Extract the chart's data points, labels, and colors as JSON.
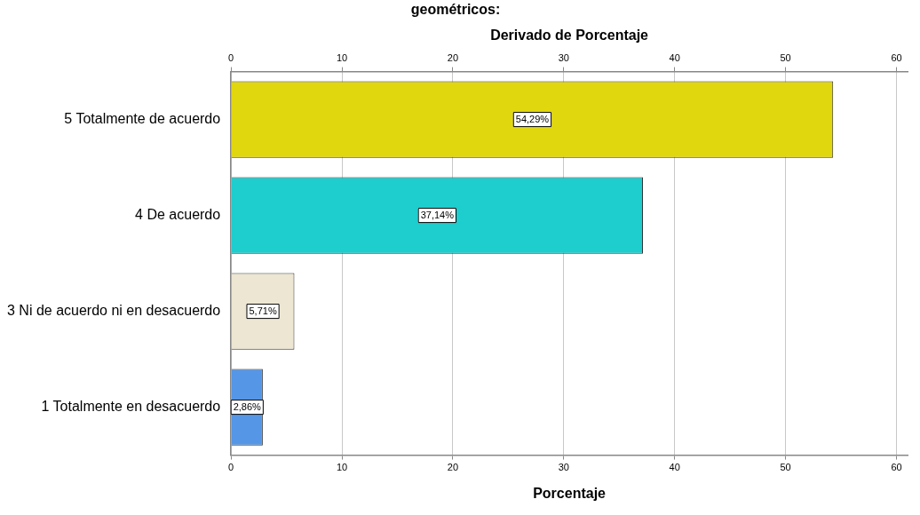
{
  "chart_data": {
    "type": "bar",
    "orientation": "horizontal",
    "title": "geométricos:",
    "xlabel": "Porcentaje",
    "x2label": "Derivado de Porcentaje",
    "categories": [
      "5 Totalmente de acuerdo",
      "4 De acuerdo",
      "3 Ni de acuerdo ni en desacuerdo",
      "1 Totalmente en desacuerdo"
    ],
    "values": [
      54.29,
      37.14,
      5.71,
      2.86
    ],
    "colors": [
      "#e1d70e",
      "#1ecdcd",
      "#ece6d2",
      "#5596e6"
    ],
    "value_labels": [
      "54,29%",
      "37,14%",
      "5,71%",
      "2,86%"
    ],
    "xlim": [
      0,
      61
    ],
    "xticks": [
      0,
      10,
      20,
      30,
      40,
      50,
      60
    ],
    "x2lim": [
      0,
      61
    ],
    "x2ticks": [
      0,
      10,
      20,
      30,
      40,
      50,
      60
    ],
    "grid": "x",
    "legend": false
  }
}
